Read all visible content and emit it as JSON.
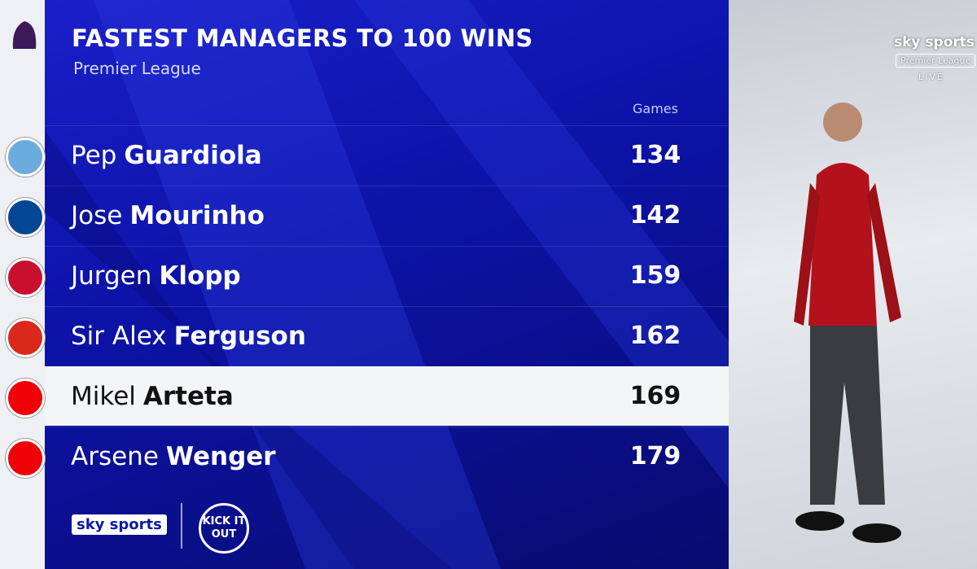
{
  "header": {
    "title": "FASTEST MANAGERS TO 100 WINS",
    "subtitle": "Premier League"
  },
  "table": {
    "column_header": "Games",
    "rows": [
      {
        "first": "Pep",
        "last": "Guardiola",
        "games": 134
      },
      {
        "first": "Jose",
        "last": "Mourinho",
        "games": 142
      },
      {
        "first": "Jurgen",
        "last": "Klopp",
        "games": 159
      },
      {
        "first": "Sir Alex",
        "last": "Ferguson",
        "games": 162
      },
      {
        "first": "Mikel",
        "last": "Arteta",
        "games": 169
      },
      {
        "first": "Arsene",
        "last": "Wenger",
        "games": 179
      }
    ]
  },
  "branding": {
    "bottom_logo": "sky sports",
    "campaign": "KICK IT OUT",
    "top_logo": "sky sports",
    "top_league": "Premier League",
    "top_live": "LIVE"
  }
}
